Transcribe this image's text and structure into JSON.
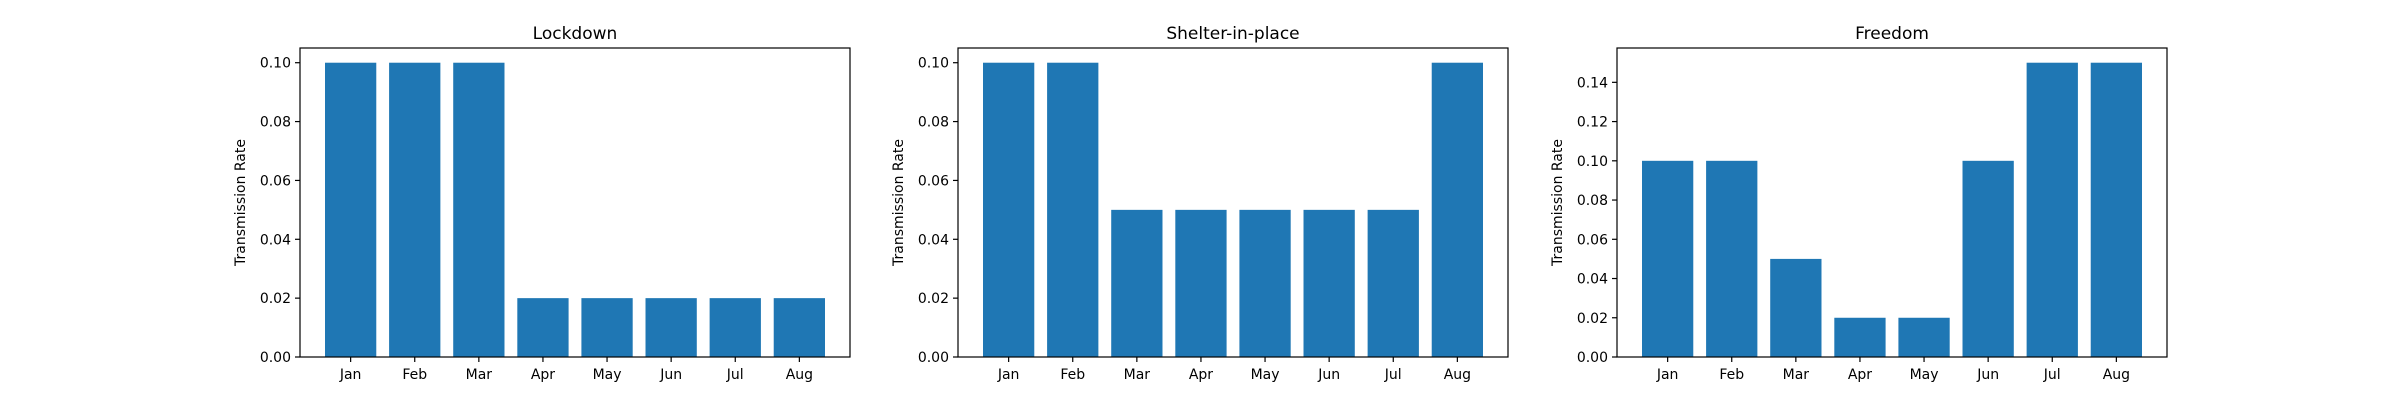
{
  "chart_data": [
    {
      "type": "bar",
      "title": "Lockdown",
      "xlabel": "",
      "ylabel": "Transmission Rate",
      "categories": [
        "Jan",
        "Feb",
        "Mar",
        "Apr",
        "May",
        "Jun",
        "Jul",
        "Aug"
      ],
      "values": [
        0.1,
        0.1,
        0.1,
        0.02,
        0.02,
        0.02,
        0.02,
        0.02
      ],
      "ylim": [
        0,
        0.105
      ],
      "yticks": [
        0.0,
        0.02,
        0.04,
        0.06,
        0.08,
        0.1
      ],
      "ytick_labels": [
        "0.00",
        "0.02",
        "0.04",
        "0.06",
        "0.08",
        "0.10"
      ],
      "grid": false,
      "color": "#1f77b4"
    },
    {
      "type": "bar",
      "title": "Shelter-in-place",
      "xlabel": "",
      "ylabel": "Transmission Rate",
      "categories": [
        "Jan",
        "Feb",
        "Mar",
        "Apr",
        "May",
        "Jun",
        "Jul",
        "Aug"
      ],
      "values": [
        0.1,
        0.1,
        0.05,
        0.05,
        0.05,
        0.05,
        0.05,
        0.1
      ],
      "ylim": [
        0,
        0.105
      ],
      "yticks": [
        0.0,
        0.02,
        0.04,
        0.06,
        0.08,
        0.1
      ],
      "ytick_labels": [
        "0.00",
        "0.02",
        "0.04",
        "0.06",
        "0.08",
        "0.10"
      ],
      "grid": false,
      "color": "#1f77b4"
    },
    {
      "type": "bar",
      "title": "Freedom",
      "xlabel": "",
      "ylabel": "Transmission Rate",
      "categories": [
        "Jan",
        "Feb",
        "Mar",
        "Apr",
        "May",
        "Jun",
        "Jul",
        "Aug"
      ],
      "values": [
        0.1,
        0.1,
        0.05,
        0.02,
        0.02,
        0.1,
        0.15,
        0.15
      ],
      "ylim": [
        0,
        0.1575
      ],
      "yticks": [
        0.0,
        0.02,
        0.04,
        0.06,
        0.08,
        0.1,
        0.12,
        0.14
      ],
      "ytick_labels": [
        "0.00",
        "0.02",
        "0.04",
        "0.06",
        "0.08",
        "0.10",
        "0.12",
        "0.14"
      ],
      "grid": false,
      "color": "#1f77b4"
    }
  ]
}
